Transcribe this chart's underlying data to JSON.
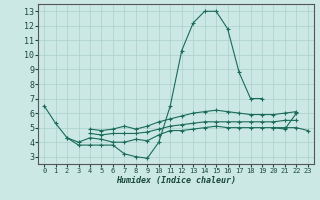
{
  "background_color": "#cce8e4",
  "grid_color": "#b0d4ce",
  "line_color": "#1a6b5a",
  "xlabel": "Humidex (Indice chaleur)",
  "xlim": [
    -0.5,
    23.5
  ],
  "ylim": [
    2.5,
    13.5
  ],
  "xticks": [
    0,
    1,
    2,
    3,
    4,
    5,
    6,
    7,
    8,
    9,
    10,
    11,
    12,
    13,
    14,
    15,
    16,
    17,
    18,
    19,
    20,
    21,
    22,
    23
  ],
  "yticks": [
    3,
    4,
    5,
    6,
    7,
    8,
    9,
    10,
    11,
    12,
    13
  ],
  "series": [
    {
      "x": [
        0,
        1,
        2,
        3,
        4,
        5,
        6,
        7,
        8,
        9,
        10,
        11,
        12,
        13,
        14,
        15,
        16,
        17,
        18,
        19,
        20,
        21,
        22
      ],
      "y": [
        6.5,
        5.3,
        4.3,
        3.8,
        3.8,
        3.8,
        3.8,
        3.2,
        3.0,
        2.9,
        4.0,
        6.5,
        10.3,
        12.2,
        13.0,
        13.0,
        11.8,
        8.8,
        7.0,
        7.0,
        null,
        null,
        null
      ]
    },
    {
      "x": [
        19,
        20,
        21,
        22
      ],
      "y": [
        null,
        5.0,
        4.9,
        6.0
      ]
    },
    {
      "x": [
        2,
        3,
        4,
        5,
        6,
        7,
        8,
        9,
        10,
        11,
        12,
        13,
        14,
        15,
        16,
        17,
        18,
        19,
        20,
        21,
        22,
        23
      ],
      "y": [
        4.3,
        4.0,
        4.3,
        4.2,
        4.0,
        4.0,
        4.2,
        4.1,
        4.5,
        4.8,
        4.8,
        4.9,
        5.0,
        5.1,
        5.0,
        5.0,
        5.0,
        5.0,
        5.0,
        5.0,
        5.0,
        4.8
      ]
    },
    {
      "x": [
        4,
        5,
        6,
        7,
        8,
        9,
        10,
        11,
        12,
        13,
        14,
        15,
        16,
        17,
        18,
        19,
        20,
        21,
        22
      ],
      "y": [
        4.6,
        4.5,
        4.6,
        4.6,
        4.6,
        4.7,
        4.9,
        5.1,
        5.2,
        5.3,
        5.4,
        5.4,
        5.4,
        5.4,
        5.4,
        5.4,
        5.4,
        5.5,
        5.5
      ]
    },
    {
      "x": [
        4,
        5,
        6,
        7,
        8,
        9,
        10,
        11,
        12,
        13,
        14,
        15,
        16,
        17,
        18,
        19,
        20,
        21,
        22
      ],
      "y": [
        4.9,
        4.8,
        4.9,
        5.1,
        4.9,
        5.1,
        5.4,
        5.6,
        5.8,
        6.0,
        6.1,
        6.2,
        6.1,
        6.0,
        5.9,
        5.9,
        5.9,
        6.0,
        6.1
      ]
    }
  ]
}
